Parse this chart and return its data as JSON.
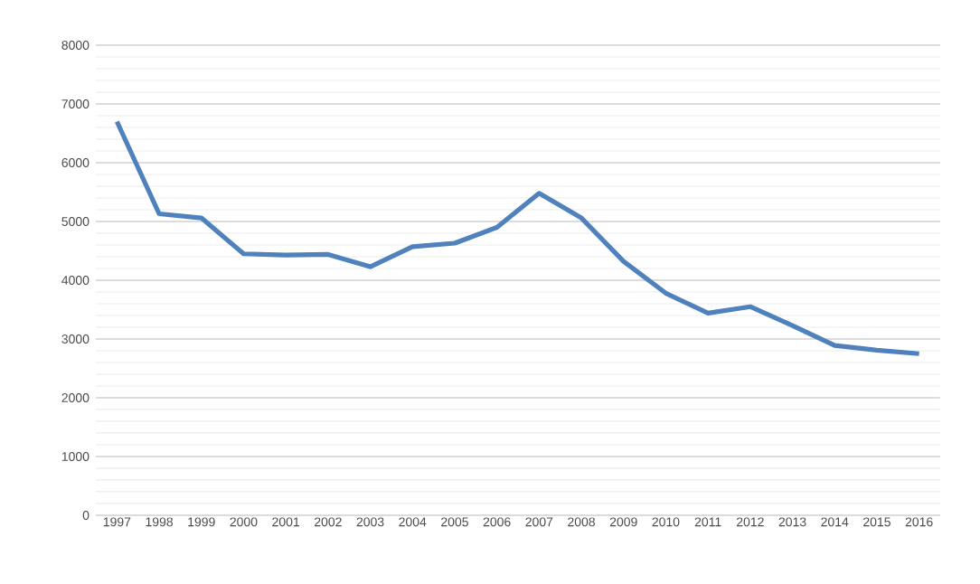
{
  "chart_data": {
    "type": "line",
    "categories": [
      "1997",
      "1998",
      "1999",
      "2000",
      "2001",
      "2002",
      "2003",
      "2004",
      "2005",
      "2006",
      "2007",
      "2008",
      "2009",
      "2010",
      "2011",
      "2012",
      "2013",
      "2014",
      "2015",
      "2016"
    ],
    "series": [
      {
        "color": "#4f81bd",
        "values": [
          6700,
          5130,
          5060,
          4450,
          4430,
          4440,
          4230,
          4570,
          4630,
          4900,
          5480,
          5060,
          4320,
          3780,
          3440,
          3550,
          3230,
          2890,
          2810,
          2750
        ]
      }
    ],
    "ylim": [
      0,
      8000
    ],
    "yticks": [
      0,
      1000,
      2000,
      3000,
      4000,
      5000,
      6000,
      7000,
      8000
    ],
    "grid": "y",
    "marker": "none",
    "line_style": "solid"
  }
}
